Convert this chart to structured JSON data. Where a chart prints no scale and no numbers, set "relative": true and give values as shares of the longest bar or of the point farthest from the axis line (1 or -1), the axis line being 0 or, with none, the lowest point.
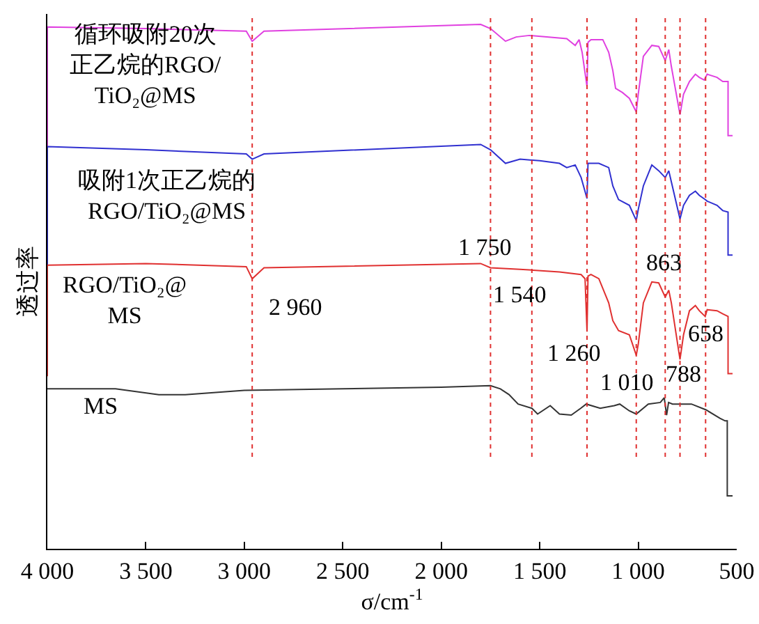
{
  "chart_data": {
    "type": "line",
    "xlabel": "σ/cm$^{-1}$",
    "ylabel": "透过率",
    "relative": true,
    "legend": false,
    "marker": "none",
    "line_style": "solid",
    "xlim": [
      4000,
      500
    ],
    "xticks": [
      {
        "value": 4000,
        "label": "4 000"
      },
      {
        "value": 3500,
        "label": "3 500"
      },
      {
        "value": 3000,
        "label": "3 000"
      },
      {
        "value": 2500,
        "label": "2 500"
      },
      {
        "value": 2000,
        "label": "2 000"
      },
      {
        "value": 1500,
        "label": "1 500"
      },
      {
        "value": 1000,
        "label": "1 000"
      },
      500
    ],
    "series": [
      {
        "name": "循环吸附20次正乙烷的RGO/TiO₂@MS",
        "color": "#e040e0",
        "x": [
          4000,
          4000,
          3500,
          2990,
          2960,
          2900,
          1800,
          1750,
          1674,
          1620,
          1553,
          1363,
          1320,
          1300,
          1285,
          1260,
          1255,
          1240,
          1180,
          1150,
          1129,
          1115,
          1080,
          1045,
          1010,
          1000,
          974,
          931,
          896,
          863,
          845,
          832,
          788,
          770,
          740,
          710,
          690,
          665,
          650,
          600,
          571,
          544,
          544,
          521
        ],
        "values": [
          0.767,
          0.995,
          0.992,
          0.987,
          0.968,
          0.987,
          1,
          0.992,
          0.968,
          0.976,
          0.979,
          0.973,
          0.96,
          0.971,
          0.947,
          0.881,
          0.966,
          0.971,
          0.971,
          0.947,
          0.912,
          0.878,
          0.87,
          0.859,
          0.833,
          0.867,
          0.939,
          0.96,
          0.958,
          0.931,
          0.952,
          0.92,
          0.828,
          0.867,
          0.891,
          0.905,
          0.899,
          0.894,
          0.905,
          0.899,
          0.891,
          0.891,
          0.788,
          0.788
        ]
      },
      {
        "name": "吸附1次正乙烷的RGO/TiO₂@MS",
        "color": "#3030d0",
        "x": [
          4000,
          4000,
          3500,
          2990,
          2960,
          2900,
          1800,
          1750,
          1674,
          1600,
          1500,
          1400,
          1363,
          1320,
          1290,
          1260,
          1255,
          1200,
          1150,
          1129,
          1100,
          1045,
          1010,
          1000,
          974,
          931,
          896,
          863,
          845,
          832,
          788,
          770,
          740,
          710,
          690,
          660,
          650,
          600,
          571,
          544,
          544,
          521
        ],
        "values": [
          0.541,
          0.767,
          0.761,
          0.753,
          0.743,
          0.753,
          0.771,
          0.761,
          0.735,
          0.743,
          0.74,
          0.735,
          0.727,
          0.732,
          0.708,
          0.668,
          0.735,
          0.735,
          0.727,
          0.692,
          0.666,
          0.655,
          0.626,
          0.647,
          0.692,
          0.732,
          0.721,
          0.708,
          0.721,
          0.7,
          0.629,
          0.655,
          0.674,
          0.682,
          0.674,
          0.666,
          0.663,
          0.655,
          0.645,
          0.642,
          0.56,
          0.56
        ]
      },
      {
        "name": "RGO/TiO₂@MS",
        "color": "#e03030",
        "x": [
          4000,
          4000,
          3500,
          2990,
          2960,
          2900,
          1800,
          1750,
          1600,
          1400,
          1290,
          1270,
          1260,
          1255,
          1240,
          1200,
          1150,
          1129,
          1100,
          1045,
          1010,
          1000,
          974,
          931,
          896,
          863,
          845,
          832,
          788,
          770,
          740,
          710,
          690,
          660,
          650,
          600,
          571,
          544,
          544,
          521
        ],
        "values": [
          0.329,
          0.541,
          0.544,
          0.538,
          0.515,
          0.536,
          0.544,
          0.536,
          0.533,
          0.528,
          0.523,
          0.515,
          0.414,
          0.52,
          0.523,
          0.515,
          0.469,
          0.435,
          0.416,
          0.408,
          0.369,
          0.39,
          0.469,
          0.509,
          0.507,
          0.48,
          0.493,
          0.469,
          0.361,
          0.408,
          0.454,
          0.464,
          0.454,
          0.443,
          0.456,
          0.454,
          0.448,
          0.443,
          0.334,
          0.334
        ]
      },
      {
        "name": "MS",
        "color": "#333333",
        "x": [
          4000,
          3654,
          3434,
          3300,
          3000,
          2500,
          2000,
          1750,
          1700,
          1656,
          1610,
          1540,
          1511,
          1447,
          1400,
          1340,
          1292,
          1264,
          1193,
          1122,
          1094,
          1045,
          1010,
          949,
          888,
          868,
          856,
          846,
          826,
          730,
          656,
          585,
          559,
          548,
          548,
          521
        ],
        "values": [
          0.305,
          0.305,
          0.294,
          0.294,
          0.302,
          0.305,
          0.308,
          0.311,
          0.305,
          0.294,
          0.276,
          0.268,
          0.257,
          0.273,
          0.257,
          0.255,
          0.268,
          0.276,
          0.268,
          0.273,
          0.276,
          0.263,
          0.257,
          0.276,
          0.279,
          0.288,
          0.255,
          0.279,
          0.276,
          0.276,
          0.265,
          0.249,
          0.244,
          0.244,
          0.101,
          0.101
        ]
      }
    ],
    "ref_lines": [
      {
        "axis": "x",
        "value": 2960,
        "label": "2 960",
        "color": "#e03030",
        "line_style": "dotted"
      },
      {
        "axis": "x",
        "value": 1750,
        "label": "1 750",
        "color": "#e03030",
        "line_style": "dotted"
      },
      {
        "axis": "x",
        "value": 1540,
        "label": "1 540",
        "color": "#e03030",
        "line_style": "dotted"
      },
      {
        "axis": "x",
        "value": 1260,
        "label": "1 260",
        "color": "#e03030",
        "line_style": "dotted"
      },
      {
        "axis": "x",
        "value": 1010,
        "label": "1 010",
        "color": "#e03030",
        "line_style": "dotted"
      },
      {
        "axis": "x",
        "value": 863,
        "label": "863",
        "color": "#e03030",
        "line_style": "dotted"
      },
      {
        "axis": "x",
        "value": 788,
        "label": "788",
        "color": "#e03030",
        "line_style": "dotted"
      },
      {
        "axis": "x",
        "value": 658,
        "label": "658",
        "color": "#e03030",
        "line_style": "dotted"
      }
    ]
  }
}
